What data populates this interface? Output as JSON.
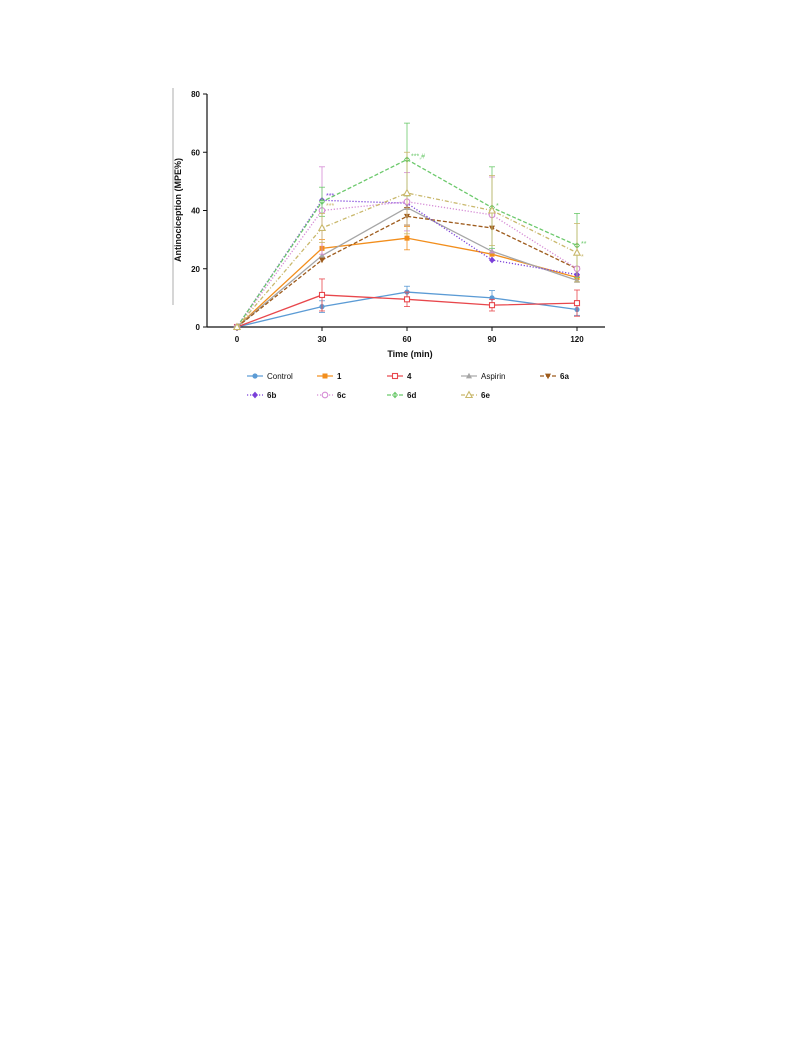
{
  "chart_data": {
    "type": "line",
    "xlabel": "Time (min)",
    "ylabel": "Antinociception (MPE%)",
    "x": [
      0,
      30,
      60,
      90,
      120
    ],
    "xlim": [
      -10,
      130
    ],
    "ylim": [
      0,
      80
    ],
    "xticks": [
      "0",
      "30",
      "60",
      "90",
      "120"
    ],
    "yticks": [
      "0",
      "20",
      "40",
      "60",
      "80"
    ],
    "grid": false,
    "legend_position": "bottom",
    "series": [
      {
        "name": "Control",
        "color": "#5b9bd5",
        "marker": "circle",
        "dash": "solid",
        "values": [
          0,
          7,
          12,
          10,
          6
        ],
        "err": [
          0,
          2,
          2,
          2.5,
          2
        ]
      },
      {
        "name": "1",
        "color": "#f28e1c",
        "marker": "square",
        "dash": "solid",
        "values": [
          0,
          27,
          30.5,
          25,
          17
        ],
        "err": [
          0,
          3,
          4,
          0,
          0
        ]
      },
      {
        "name": "4",
        "color": "#e8474c",
        "marker": "square-open",
        "dash": "solid",
        "values": [
          0,
          11,
          9.5,
          7.5,
          8.2
        ],
        "err": [
          0,
          5.5,
          2.5,
          2,
          4.5
        ]
      },
      {
        "name": "Aspirin",
        "color": "#a6a6a6",
        "marker": "triangle",
        "dash": "solid",
        "values": [
          0,
          24.5,
          41,
          26,
          16
        ],
        "err": [
          0,
          0,
          0,
          0,
          0
        ]
      },
      {
        "name": "6a",
        "color": "#9e5b1c",
        "marker": "triangle-down",
        "dash": "dashed",
        "values": [
          0,
          23,
          38,
          34,
          20
        ],
        "err": [
          0,
          0,
          3,
          0,
          0
        ]
      },
      {
        "name": "6b",
        "color": "#7a3fd9",
        "marker": "diamond",
        "dash": "dotted",
        "values": [
          0,
          43.5,
          42.5,
          23,
          18
        ],
        "err": [
          0,
          0,
          0,
          0,
          0
        ]
      },
      {
        "name": "6c",
        "color": "#d58ad5",
        "marker": "circle-open",
        "dash": "dotted",
        "values": [
          0,
          40,
          43,
          38.5,
          20
        ],
        "err": [
          0,
          15,
          10,
          13,
          0
        ]
      },
      {
        "name": "6d",
        "color": "#6cc96c",
        "marker": "diamond-plus",
        "dash": "dashed",
        "values": [
          0,
          43,
          57.5,
          41,
          28
        ],
        "err": [
          0,
          5,
          12.5,
          14,
          11
        ]
      },
      {
        "name": "6e",
        "color": "#c9b86c",
        "marker": "triangle-open",
        "dash": "dashdot",
        "values": [
          0,
          34,
          46,
          40,
          25.5
        ],
        "err": [
          0,
          5,
          14,
          12,
          10
        ]
      }
    ],
    "annotations": [
      {
        "text": "***",
        "x": 30,
        "y": 45,
        "color": "#7a3fd9"
      },
      {
        "text": "***",
        "x": 30,
        "y": 41.5,
        "color": "#c9b86c"
      },
      {
        "text": "***,#",
        "x": 60,
        "y": 58.5,
        "color": "#6cc96c"
      },
      {
        "text": "*",
        "x": 90,
        "y": 41.5,
        "color": "#6cc96c"
      },
      {
        "text": "**",
        "x": 120,
        "y": 28.5,
        "color": "#6cc96c"
      },
      {
        "text": "*",
        "x": 120,
        "y": 24,
        "color": "#c9b86c"
      }
    ]
  }
}
